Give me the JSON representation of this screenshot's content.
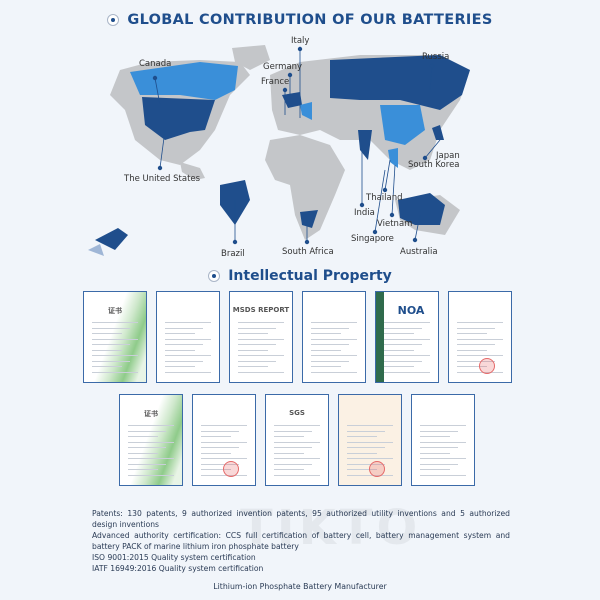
{
  "section1": {
    "title": "GLOBAL CONTRIBUTION OF OUR BATTERIES"
  },
  "map": {
    "countries": [
      "Canada",
      "Italy",
      "Germany",
      "France",
      "Russia",
      "Japan",
      "South Korea",
      "The United States",
      "Thailand",
      "India",
      "Vietnam",
      "Singapore",
      "Brazil",
      "South Africa",
      "Australia"
    ],
    "colors": {
      "land": "#c4c6c9",
      "highlight_dark": "#1f4e8c",
      "highlight_light": "#3a8fd9"
    }
  },
  "section2": {
    "title": "Intellectual Property"
  },
  "certificates": [
    {
      "heading": "证书",
      "style": "green"
    },
    {
      "heading": "",
      "style": "plain"
    },
    {
      "heading": "MSDS REPORT",
      "style": "plain"
    },
    {
      "heading": "",
      "style": "plain"
    },
    {
      "heading": "NOA",
      "style": "dark"
    },
    {
      "heading": "",
      "style": "plain"
    },
    {
      "heading": "证书",
      "style": "green"
    },
    {
      "heading": "",
      "style": "plain"
    },
    {
      "heading": "SGS",
      "style": "plain"
    },
    {
      "heading": "",
      "style": "beige"
    },
    {
      "heading": "",
      "style": "plain"
    }
  ],
  "description": [
    "Patents: 130 patents, 9 authorized invention patents, 95 authorized utility inventions and 5 authorized design inventions",
    "Advanced authority certification: CCS full certification of battery cell, battery management system and battery PACK of marine lithium iron phosphate battery",
    "ISO 9001:2015 Quality system certification",
    "IATF 16949:2016 Quality system certification"
  ],
  "watermark": "TIKTO",
  "footer": "Lithium-ion Phosphate Battery Manufacturer"
}
